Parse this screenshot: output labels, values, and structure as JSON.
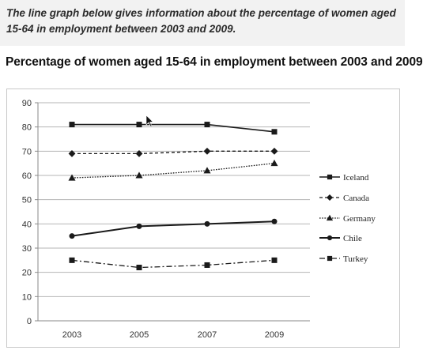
{
  "intro": {
    "text": "The line graph below gives information about the percentage of women aged 15-64 in employment between 2003 and 2009."
  },
  "colors": {
    "line": "#1a1a1a",
    "axis": "#8a8a8a",
    "grid": "#b4b4b4",
    "intro_background": "#f2f2f2",
    "frame": "#c8c8c8"
  },
  "chart_data": {
    "type": "line",
    "title": "Percentage of women aged 15-64 in employment between 2003 and 2009",
    "xlabel": "",
    "ylabel": "",
    "categories": [
      "2003",
      "2005",
      "2007",
      "2009"
    ],
    "ylim": [
      0,
      90
    ],
    "yticks": [
      0,
      10,
      20,
      30,
      40,
      50,
      60,
      70,
      80,
      90
    ],
    "grid": true,
    "legend_position": "right",
    "series": [
      {
        "name": "Iceland",
        "values": [
          81,
          81,
          81,
          78
        ],
        "marker": "square",
        "dash": "solid"
      },
      {
        "name": "Canada",
        "values": [
          69,
          69,
          70,
          70
        ],
        "marker": "diamond",
        "dash": "dashed"
      },
      {
        "name": "Germany",
        "values": [
          59,
          60,
          62,
          65
        ],
        "marker": "triangle",
        "dash": "dotted"
      },
      {
        "name": "Chile",
        "values": [
          35,
          39,
          40,
          41
        ],
        "marker": "circle",
        "dash": "solid-thick"
      },
      {
        "name": "Turkey",
        "values": [
          25,
          22,
          23,
          25
        ],
        "marker": "square",
        "dash": "dash-dot"
      }
    ]
  }
}
